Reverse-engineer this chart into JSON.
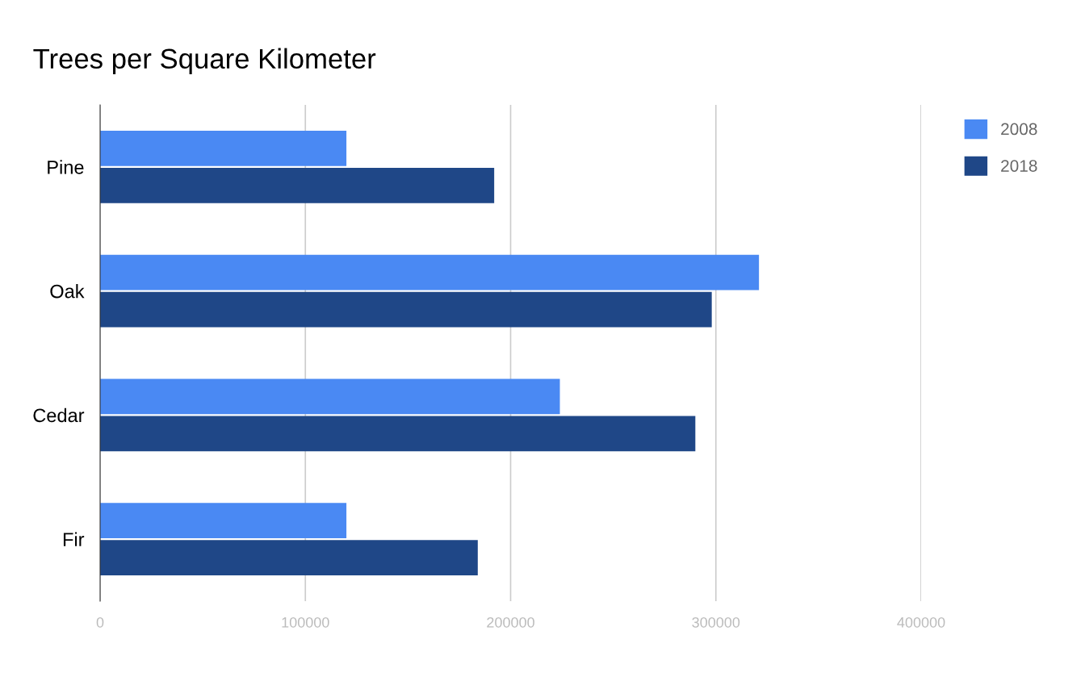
{
  "chart_data": {
    "type": "bar",
    "orientation": "horizontal",
    "title": "Trees per Square Kilometer",
    "categories": [
      "Pine",
      "Oak",
      "Cedar",
      "Fir"
    ],
    "series": [
      {
        "name": "2008",
        "color": "#4a89f3",
        "values": [
          120000,
          321000,
          224000,
          120000
        ]
      },
      {
        "name": "2018",
        "color": "#1f4787",
        "values": [
          192000,
          298000,
          290000,
          184000
        ]
      }
    ],
    "xlim": [
      0,
      400000
    ],
    "xticks": [
      0,
      100000,
      200000,
      300000,
      400000
    ],
    "grid": "x",
    "legend": "top right"
  }
}
